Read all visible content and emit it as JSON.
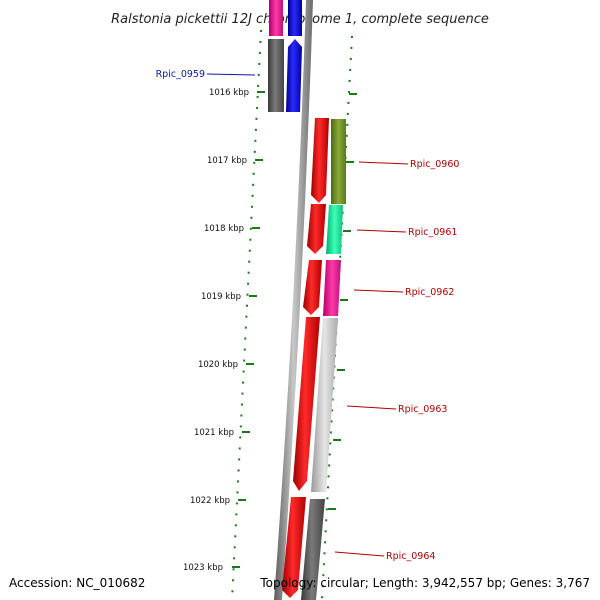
{
  "title": "Ralstonia pickettii 12J chromosome 1, complete sequence",
  "scale_labels": [
    "1016 kbp",
    "1017 kbp",
    "1018 kbp",
    "1019 kbp",
    "1020 kbp",
    "1021 kbp",
    "1022 kbp",
    "1023 kbp"
  ],
  "gene_labels": [
    {
      "name": "Rpic_0959",
      "color": "#0a1a9a"
    },
    {
      "name": "Rpic_0960",
      "color": "#b00000"
    },
    {
      "name": "Rpic_0961",
      "color": "#b00000"
    },
    {
      "name": "Rpic_0962",
      "color": "#b00000"
    },
    {
      "name": "Rpic_0963",
      "color": "#b00000"
    },
    {
      "name": "Rpic_0964",
      "color": "#b00000"
    }
  ],
  "colors": {
    "backbone": "#8a8a8a",
    "ticks": "#1a7a1a",
    "forward_strand": "#e00000",
    "reverse_strand": "#0000e0"
  },
  "footer": {
    "accession": "Accession: NC_010682",
    "topology": "Topology: circular; Length: 3,942,557 bp; Genes: 3,767"
  }
}
